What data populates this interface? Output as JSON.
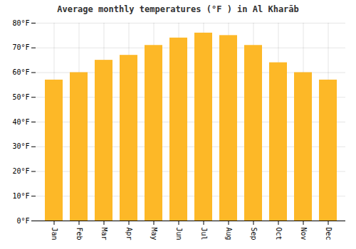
{
  "chart_data": {
    "type": "bar",
    "title": "Average monthly temperatures (°F ) in Al Kharāb",
    "categories": [
      "Jan",
      "Feb",
      "Mar",
      "Apr",
      "May",
      "Jun",
      "Jul",
      "Aug",
      "Sep",
      "Oct",
      "Nov",
      "Dec"
    ],
    "values": [
      57,
      60,
      65,
      67,
      71,
      74,
      76,
      75,
      71,
      64,
      60,
      57
    ],
    "color": "#FDB827",
    "ylim": [
      0,
      80
    ],
    "yticks": [
      {
        "value": 0,
        "label": "0°F"
      },
      {
        "value": 10,
        "label": "10°F"
      },
      {
        "value": 20,
        "label": "20°F"
      },
      {
        "value": 30,
        "label": "30°F"
      },
      {
        "value": 40,
        "label": "40°F"
      },
      {
        "value": 50,
        "label": "50°F"
      },
      {
        "value": 60,
        "label": "60°F"
      },
      {
        "value": 70,
        "label": "70°F"
      },
      {
        "value": 80,
        "label": "80°F"
      }
    ],
    "grid": true
  }
}
